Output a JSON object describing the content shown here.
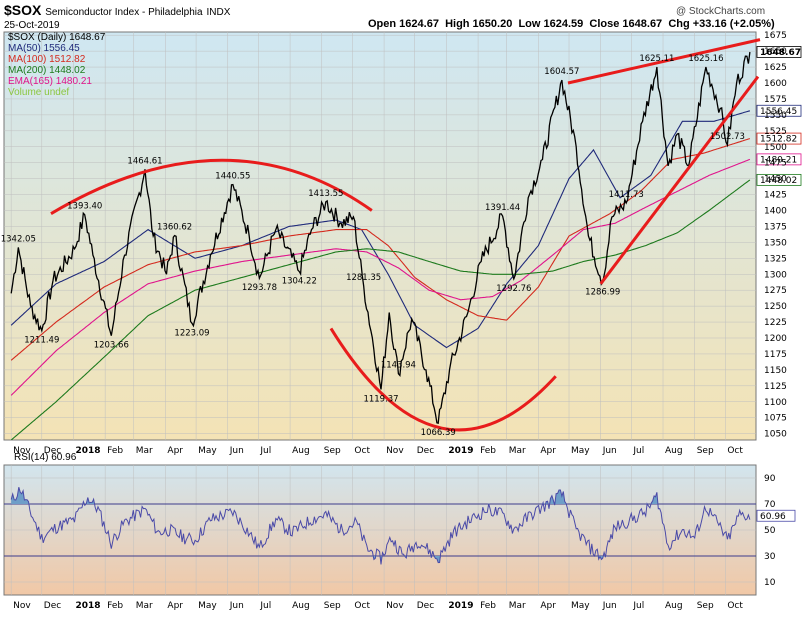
{
  "header": {
    "title": "$SOX",
    "subtitle": "Semiconductor Index - Philadelphia",
    "exchange": "INDX",
    "date": "25-Oct-2019",
    "open": "Open 1624.67",
    "high": "High 1650.20",
    "low": "Low 1624.59",
    "close": "Close 1648.67",
    "chg": "Chg +33.16 (+2.05%)",
    "copyright": "@ StockCharts.com"
  },
  "legend": [
    {
      "text": "$SOX (Daily) 1648.67",
      "color": "#000000"
    },
    {
      "text": "MA(50) 1556.45",
      "color": "#1f2a7a"
    },
    {
      "text": "MA(100) 1512.82",
      "color": "#d42a1e"
    },
    {
      "text": "MA(200) 1448.02",
      "color": "#1d7a1d"
    },
    {
      "text": "EMA(165) 1480.21",
      "color": "#e0148c"
    },
    {
      "text": "Volume undef",
      "color": "#8cc63f"
    }
  ],
  "colors": {
    "price_bg_top": "#cfe7f2",
    "price_bg_bottom": "#f4e3b5",
    "rsi_bg_top": "#d2e5ee",
    "rsi_bg_bottom": "#f1c8a6",
    "price_line": "#000000",
    "ma50": "#1f2a7a",
    "ma100": "#d42a1e",
    "ma200": "#1d7a1d",
    "ema165": "#e0148c",
    "annotation": "#e81c1c",
    "rsi_line": "#4a4aa8",
    "rsi_fill": "#6e9ec8"
  },
  "chart_data": [
    {
      "type": "line",
      "title": "$SOX (Daily)",
      "ylim": [
        1040,
        1680
      ],
      "y_ticks": [
        1050,
        1075,
        1100,
        1125,
        1150,
        1175,
        1200,
        1225,
        1250,
        1275,
        1300,
        1325,
        1350,
        1375,
        1400,
        1425,
        1450,
        1475,
        1500,
        1525,
        1550,
        1575,
        1600,
        1625,
        1650,
        1675
      ],
      "x_labels": [
        "Nov",
        "Dec",
        "2018",
        "Feb",
        "Mar",
        "Apr",
        "May",
        "Jun",
        "Jul",
        "Aug",
        "Sep",
        "Oct",
        "Nov",
        "Dec",
        "2019",
        "Feb",
        "Mar",
        "Apr",
        "May",
        "Jun",
        "Jul",
        "Aug",
        "Sep",
        "Oct"
      ],
      "price_key_points": [
        [
          "2017-11-01",
          1270
        ],
        [
          "2017-11-08",
          1342.05
        ],
        [
          "2017-11-20",
          1250
        ],
        [
          "2017-12-01",
          1211.49
        ],
        [
          "2017-12-12",
          1290
        ],
        [
          "2018-01-02",
          1340
        ],
        [
          "2018-01-12",
          1393.4
        ],
        [
          "2018-01-20",
          1330
        ],
        [
          "2018-02-07",
          1203.66
        ],
        [
          "2018-02-20",
          1330
        ],
        [
          "2018-03-12",
          1464.61
        ],
        [
          "2018-03-20",
          1360
        ],
        [
          "2018-04-02",
          1300
        ],
        [
          "2018-04-10",
          1360.62
        ],
        [
          "2018-04-27",
          1223.09
        ],
        [
          "2018-05-15",
          1330
        ],
        [
          "2018-06-06",
          1440.55
        ],
        [
          "2018-06-22",
          1360
        ],
        [
          "2018-07-02",
          1293.78
        ],
        [
          "2018-07-18",
          1370
        ],
        [
          "2018-08-10",
          1304.22
        ],
        [
          "2018-08-22",
          1370
        ],
        [
          "2018-09-05",
          1413.55
        ],
        [
          "2018-09-20",
          1380
        ],
        [
          "2018-10-02",
          1390
        ],
        [
          "2018-10-12",
          1281.35
        ],
        [
          "2018-10-29",
          1119.37
        ],
        [
          "2018-11-06",
          1240
        ],
        [
          "2018-11-15",
          1143.94
        ],
        [
          "2018-11-28",
          1230
        ],
        [
          "2018-12-12",
          1150
        ],
        [
          "2018-12-24",
          1066.39
        ],
        [
          "2019-01-04",
          1150
        ],
        [
          "2019-01-22",
          1240
        ],
        [
          "2019-02-04",
          1320
        ],
        [
          "2019-02-25",
          1391.44
        ],
        [
          "2019-03-08",
          1292.76
        ],
        [
          "2019-03-22",
          1420
        ],
        [
          "2019-04-05",
          1480
        ],
        [
          "2019-04-24",
          1604.57
        ],
        [
          "2019-05-08",
          1500
        ],
        [
          "2019-05-20",
          1360
        ],
        [
          "2019-06-03",
          1286.99
        ],
        [
          "2019-06-12",
          1390
        ],
        [
          "2019-06-26",
          1411.73
        ],
        [
          "2019-07-12",
          1540
        ],
        [
          "2019-07-26",
          1625.11
        ],
        [
          "2019-08-06",
          1470
        ],
        [
          "2019-08-15",
          1520
        ],
        [
          "2019-08-26",
          1470
        ],
        [
          "2019-09-12",
          1625.16
        ],
        [
          "2019-09-26",
          1560
        ],
        [
          "2019-10-03",
          1502.73
        ],
        [
          "2019-10-12",
          1600
        ],
        [
          "2019-10-25",
          1648.67
        ]
      ],
      "annotations": [
        {
          "text": "1342.05",
          "date": "2017-11-08",
          "value": 1342.05
        },
        {
          "text": "1211.49",
          "date": "2017-12-01",
          "value": 1211.49
        },
        {
          "text": "1393.40",
          "date": "2018-01-12",
          "value": 1393.4
        },
        {
          "text": "1203.66",
          "date": "2018-02-07",
          "value": 1203.66
        },
        {
          "text": "1464.61",
          "date": "2018-03-12",
          "value": 1464.61
        },
        {
          "text": "1360.62",
          "date": "2018-04-10",
          "value": 1360.62
        },
        {
          "text": "1223.09",
          "date": "2018-04-27",
          "value": 1223.09
        },
        {
          "text": "1440.55",
          "date": "2018-06-06",
          "value": 1440.55
        },
        {
          "text": "1293.78",
          "date": "2018-07-02",
          "value": 1293.78
        },
        {
          "text": "1304.22",
          "date": "2018-08-10",
          "value": 1304.22
        },
        {
          "text": "1413.55",
          "date": "2018-09-05",
          "value": 1413.55
        },
        {
          "text": "1281.35",
          "date": "2018-10-12",
          "value": 1281.35
        },
        {
          "text": "1119.37",
          "date": "2018-10-29",
          "value": 1119.37
        },
        {
          "text": "1143.94",
          "date": "2018-11-15",
          "value": 1143.94
        },
        {
          "text": "1066.39",
          "date": "2018-12-24",
          "value": 1066.39
        },
        {
          "text": "1391.44",
          "date": "2019-02-25",
          "value": 1391.44
        },
        {
          "text": "1292.76",
          "date": "2019-03-08",
          "value": 1292.76
        },
        {
          "text": "1604.57",
          "date": "2019-04-24",
          "value": 1604.57
        },
        {
          "text": "1286.99",
          "date": "2019-06-03",
          "value": 1286.99
        },
        {
          "text": "1411.73",
          "date": "2019-06-26",
          "value": 1411.73
        },
        {
          "text": "1625.11",
          "date": "2019-07-26",
          "value": 1625.11
        },
        {
          "text": "1625.16",
          "date": "2019-09-12",
          "value": 1625.16
        },
        {
          "text": "1502.73",
          "date": "2019-10-03",
          "value": 1502.73
        }
      ],
      "right_labels": [
        {
          "text": "1648.67",
          "value": 1648.67,
          "color": "#000000"
        },
        {
          "text": "1556.45",
          "value": 1556.45,
          "color": "#1f2a7a"
        },
        {
          "text": "1512.82",
          "value": 1512.82,
          "color": "#d42a1e"
        },
        {
          "text": "1480.21",
          "value": 1480.21,
          "color": "#e0148c"
        },
        {
          "text": "1448.02",
          "value": 1448.02,
          "color": "#1d7a1d"
        }
      ],
      "series": [
        {
          "key": "ma50",
          "points": [
            [
              "2017-11-01",
              1220
            ],
            [
              "2017-12-15",
              1285
            ],
            [
              "2018-01-31",
              1320
            ],
            [
              "2018-03-15",
              1370
            ],
            [
              "2018-04-30",
              1325
            ],
            [
              "2018-06-15",
              1345
            ],
            [
              "2018-07-31",
              1375
            ],
            [
              "2018-09-15",
              1385
            ],
            [
              "2018-10-10",
              1370
            ],
            [
              "2018-11-05",
              1300
            ],
            [
              "2018-12-01",
              1220
            ],
            [
              "2019-01-01",
              1185
            ],
            [
              "2019-02-01",
              1215
            ],
            [
              "2019-03-01",
              1285
            ],
            [
              "2019-04-01",
              1345
            ],
            [
              "2019-05-01",
              1450
            ],
            [
              "2019-05-25",
              1495
            ],
            [
              "2019-06-20",
              1420
            ],
            [
              "2019-07-20",
              1455
            ],
            [
              "2019-08-20",
              1540
            ],
            [
              "2019-09-20",
              1540
            ],
            [
              "2019-10-25",
              1556.45
            ]
          ]
        },
        {
          "key": "ma100",
          "points": [
            [
              "2017-11-01",
              1165
            ],
            [
              "2017-12-15",
              1225
            ],
            [
              "2018-01-31",
              1280
            ],
            [
              "2018-03-15",
              1315
            ],
            [
              "2018-04-30",
              1335
            ],
            [
              "2018-06-15",
              1345
            ],
            [
              "2018-07-31",
              1360
            ],
            [
              "2018-09-15",
              1370
            ],
            [
              "2018-10-15",
              1370
            ],
            [
              "2018-11-05",
              1345
            ],
            [
              "2018-12-01",
              1295
            ],
            [
              "2019-01-01",
              1260
            ],
            [
              "2019-02-01",
              1235
            ],
            [
              "2019-03-01",
              1228
            ],
            [
              "2019-04-01",
              1280
            ],
            [
              "2019-05-01",
              1360
            ],
            [
              "2019-06-10",
              1395
            ],
            [
              "2019-07-10",
              1430
            ],
            [
              "2019-08-10",
              1480
            ],
            [
              "2019-09-10",
              1490
            ],
            [
              "2019-10-25",
              1512.82
            ]
          ]
        },
        {
          "key": "ema165",
          "points": [
            [
              "2017-11-01",
              1110
            ],
            [
              "2017-12-15",
              1180
            ],
            [
              "2018-01-31",
              1240
            ],
            [
              "2018-03-15",
              1285
            ],
            [
              "2018-04-30",
              1305
            ],
            [
              "2018-06-15",
              1320
            ],
            [
              "2018-07-31",
              1330
            ],
            [
              "2018-09-15",
              1340
            ],
            [
              "2018-10-15",
              1335
            ],
            [
              "2018-11-15",
              1310
            ],
            [
              "2018-12-15",
              1275
            ],
            [
              "2019-01-15",
              1260
            ],
            [
              "2019-02-15",
              1265
            ],
            [
              "2019-03-15",
              1290
            ],
            [
              "2019-04-15",
              1330
            ],
            [
              "2019-05-15",
              1370
            ],
            [
              "2019-06-15",
              1380
            ],
            [
              "2019-07-15",
              1405
            ],
            [
              "2019-08-15",
              1430
            ],
            [
              "2019-09-15",
              1455
            ],
            [
              "2019-10-25",
              1480.21
            ]
          ]
        },
        {
          "key": "ma200",
          "points": [
            [
              "2017-11-01",
              1040
            ],
            [
              "2017-12-15",
              1100
            ],
            [
              "2018-01-31",
              1170
            ],
            [
              "2018-03-15",
              1235
            ],
            [
              "2018-04-30",
              1275
            ],
            [
              "2018-06-15",
              1295
            ],
            [
              "2018-07-31",
              1315
            ],
            [
              "2018-09-15",
              1335
            ],
            [
              "2018-10-15",
              1340
            ],
            [
              "2018-11-15",
              1335
            ],
            [
              "2018-12-15",
              1320
            ],
            [
              "2019-01-15",
              1305
            ],
            [
              "2019-02-15",
              1300
            ],
            [
              "2019-03-15",
              1300
            ],
            [
              "2019-04-15",
              1305
            ],
            [
              "2019-05-15",
              1320
            ],
            [
              "2019-06-15",
              1330
            ],
            [
              "2019-07-15",
              1345
            ],
            [
              "2019-08-15",
              1365
            ],
            [
              "2019-09-15",
              1400
            ],
            [
              "2019-10-25",
              1448.02
            ]
          ]
        }
      ]
    },
    {
      "type": "line",
      "title": "RSI(14) 60.96",
      "ylim": [
        0,
        100
      ],
      "y_ticks": [
        10,
        30,
        50,
        70,
        90
      ],
      "ref_lines": [
        30,
        70
      ],
      "right_label": {
        "text": "60.96",
        "value": 60.96
      },
      "x_labels": [
        "Nov",
        "Dec",
        "2018",
        "Feb",
        "Mar",
        "Apr",
        "May",
        "Jun",
        "Jul",
        "Aug",
        "Sep",
        "Oct",
        "Nov",
        "Dec",
        "2019",
        "Feb",
        "Mar",
        "Apr",
        "May",
        "Jun",
        "Jul",
        "Aug",
        "Sep",
        "Oct"
      ],
      "points": [
        [
          "2017-11-01",
          72
        ],
        [
          "2017-11-10",
          82
        ],
        [
          "2017-11-22",
          60
        ],
        [
          "2017-12-01",
          44
        ],
        [
          "2017-12-15",
          52
        ],
        [
          "2018-01-02",
          58
        ],
        [
          "2018-01-15",
          75
        ],
        [
          "2018-01-25",
          66
        ],
        [
          "2018-02-07",
          40
        ],
        [
          "2018-02-20",
          56
        ],
        [
          "2018-03-12",
          66
        ],
        [
          "2018-03-25",
          48
        ],
        [
          "2018-04-05",
          50
        ],
        [
          "2018-04-20",
          44
        ],
        [
          "2018-04-30",
          42
        ],
        [
          "2018-05-15",
          58
        ],
        [
          "2018-06-06",
          64
        ],
        [
          "2018-06-20",
          50
        ],
        [
          "2018-07-02",
          36
        ],
        [
          "2018-07-18",
          58
        ],
        [
          "2018-08-03",
          48
        ],
        [
          "2018-08-22",
          58
        ],
        [
          "2018-09-05",
          62
        ],
        [
          "2018-09-20",
          50
        ],
        [
          "2018-10-05",
          56
        ],
        [
          "2018-10-15",
          36
        ],
        [
          "2018-10-29",
          28
        ],
        [
          "2018-11-08",
          44
        ],
        [
          "2018-11-20",
          30
        ],
        [
          "2018-12-05",
          42
        ],
        [
          "2018-12-24",
          27
        ],
        [
          "2019-01-08",
          48
        ],
        [
          "2019-01-25",
          58
        ],
        [
          "2019-02-10",
          66
        ],
        [
          "2019-02-25",
          62
        ],
        [
          "2019-03-08",
          50
        ],
        [
          "2019-03-25",
          62
        ],
        [
          "2019-04-10",
          70
        ],
        [
          "2019-04-24",
          78
        ],
        [
          "2019-05-08",
          50
        ],
        [
          "2019-05-22",
          36
        ],
        [
          "2019-06-03",
          28
        ],
        [
          "2019-06-15",
          52
        ],
        [
          "2019-07-01",
          58
        ],
        [
          "2019-07-15",
          64
        ],
        [
          "2019-07-26",
          76
        ],
        [
          "2019-08-06",
          38
        ],
        [
          "2019-08-20",
          50
        ],
        [
          "2019-09-01",
          44
        ],
        [
          "2019-09-12",
          68
        ],
        [
          "2019-09-26",
          52
        ],
        [
          "2019-10-03",
          42
        ],
        [
          "2019-10-15",
          62
        ],
        [
          "2019-10-25",
          60.96
        ]
      ]
    }
  ]
}
